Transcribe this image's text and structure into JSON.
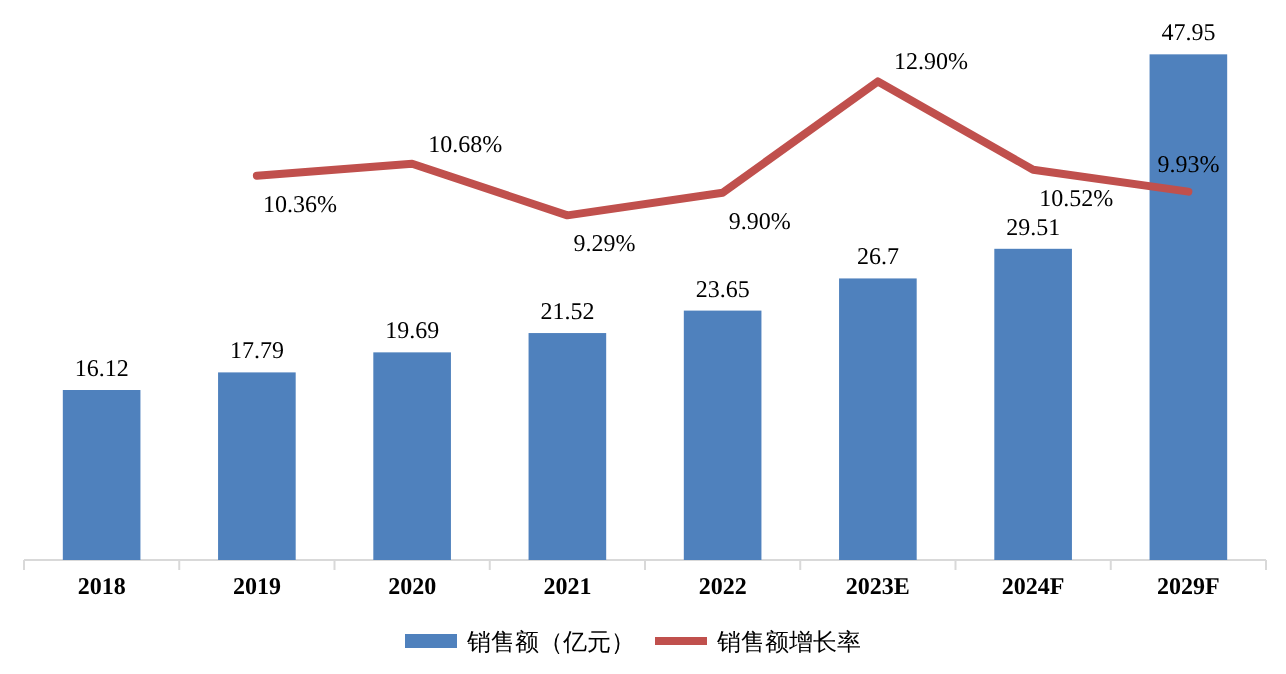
{
  "chart_data": {
    "type": "bar",
    "categories": [
      "2018",
      "2019",
      "2020",
      "2021",
      "2022",
      "2023E",
      "2024F",
      "2029F"
    ],
    "series": [
      {
        "name": "销售额（亿元）",
        "color": "#4f81bd",
        "values": [
          16.12,
          17.79,
          19.69,
          21.52,
          23.65,
          26.7,
          29.51,
          47.95
        ],
        "value_labels": [
          "16.12",
          "17.79",
          "19.69",
          "21.52",
          "23.65",
          "26.7",
          "29.51",
          "47.95"
        ]
      },
      {
        "name": "销售额增长率",
        "type": "line",
        "axis": "y2",
        "color": "#c0504d",
        "values": [
          null,
          10.36,
          10.68,
          9.29,
          9.9,
          12.9,
          10.52,
          9.93
        ],
        "value_labels": [
          null,
          "10.36%",
          "10.68%",
          "9.29%",
          "9.90%",
          "12.90%",
          "10.52%",
          "9.93%"
        ]
      }
    ],
    "legend": "bottom",
    "marker": "none"
  }
}
